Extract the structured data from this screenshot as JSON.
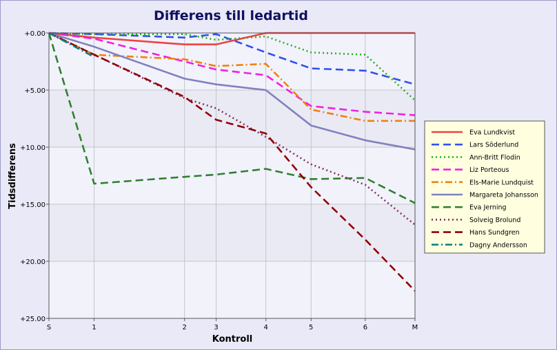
{
  "chart_data": {
    "type": "line",
    "title": "Differens till ledartid",
    "xlabel": "Kontroll",
    "ylabel": "Tidsdifferens",
    "x_categories": [
      "S",
      "1",
      "2",
      "3",
      "4",
      "5",
      "6",
      "M"
    ],
    "x_positions": [
      0,
      1,
      3,
      3.7,
      4.8,
      5.8,
      7,
      8.1
    ],
    "y_ticks": [
      "+0.00",
      "+5.00",
      "+10.00",
      "+15.00",
      "+20.00",
      "+25.00"
    ],
    "y_tick_values": [
      0,
      5,
      10,
      15,
      20,
      25
    ],
    "ylim": [
      0,
      25
    ],
    "y_inverted": true,
    "grid": true,
    "legend_position": "right",
    "series": [
      {
        "name": "Eva Lundkvist",
        "color": "#f04040",
        "dash": "solid",
        "values": [
          0,
          0.4,
          1.0,
          1.0,
          0,
          0,
          0,
          0
        ]
      },
      {
        "name": "Lars Söderlund",
        "color": "#3050f0",
        "dash": "longdash",
        "values": [
          0,
          0.1,
          0.4,
          0.1,
          1.7,
          3.1,
          3.3,
          4.5
        ]
      },
      {
        "name": "Ann-Britt Flodin",
        "color": "#20b020",
        "dash": "dot",
        "values": [
          0,
          0.1,
          0.1,
          0.6,
          0.3,
          1.7,
          1.9,
          5.9
        ]
      },
      {
        "name": "Liz Porteous",
        "color": "#f020e0",
        "dash": "longdash",
        "values": [
          0,
          0.5,
          2.5,
          3.2,
          3.7,
          6.4,
          6.9,
          7.2
        ]
      },
      {
        "name": "Els-Marie Lundquist",
        "color": "#f08010",
        "dash": "dashdot",
        "values": [
          0,
          1.9,
          2.3,
          2.9,
          2.7,
          6.7,
          7.7,
          7.7
        ]
      },
      {
        "name": "Margareta Johansson",
        "color": "#8080c0",
        "dash": "solid",
        "values": [
          0,
          1.2,
          4.0,
          4.5,
          5.0,
          8.1,
          9.4,
          10.2
        ]
      },
      {
        "name": "Eva Jerning",
        "color": "#308030",
        "dash": "longdash",
        "values": [
          0,
          13.2,
          12.6,
          12.4,
          11.9,
          12.8,
          12.7,
          14.9
        ]
      },
      {
        "name": "Solveig Brolund",
        "color": "#803060",
        "dash": "dot",
        "values": [
          0,
          1.9,
          5.7,
          6.6,
          9.1,
          11.5,
          13.3,
          16.8
        ]
      },
      {
        "name": "Hans Sundgren",
        "color": "#900000",
        "dash": "longdash",
        "values": [
          0,
          1.9,
          5.6,
          7.6,
          8.8,
          13.5,
          18.1,
          22.6
        ]
      },
      {
        "name": "Dagny Andersson",
        "color": "#108080",
        "dash": "dashdot",
        "values": [
          0,
          2.1
        ]
      }
    ]
  }
}
